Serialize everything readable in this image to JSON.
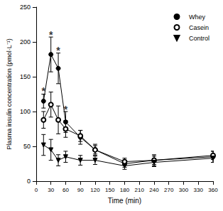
{
  "chart_data": {
    "type": "line",
    "x_label": "Time (min)",
    "y_label": "Plasma insulin concentration (pmol·L⁻¹)",
    "x": [
      15,
      30,
      45,
      60,
      90,
      120,
      180,
      240,
      360
    ],
    "series": [
      {
        "name": "Whey",
        "color": "#000000",
        "marker": "circle",
        "values": [
          115,
          182,
          162,
          85,
          63,
          45,
          25,
          30,
          35
        ],
        "errors": [
          10,
          25,
          22,
          15,
          10,
          8,
          5,
          8,
          8
        ]
      },
      {
        "name": "Casein",
        "color": "#000000",
        "marker": "open_circle",
        "values": [
          88,
          110,
          88,
          75,
          65,
          45,
          28,
          30,
          37
        ],
        "errors": [
          12,
          18,
          20,
          12,
          8,
          6,
          5,
          6,
          6
        ]
      },
      {
        "name": "Control",
        "color": "#000000",
        "marker": "triangle_down",
        "values": [
          52,
          45,
          30,
          35,
          30,
          30,
          22,
          27,
          33
        ],
        "errors": [
          15,
          15,
          8,
          8,
          7,
          6,
          5,
          6,
          6
        ]
      }
    ],
    "annotations": [
      {
        "text": "*",
        "x": 15,
        "y": 130
      },
      {
        "text": "*",
        "x": 30,
        "y": 210
      },
      {
        "text": "*",
        "x": 45,
        "y": 188
      },
      {
        "text": "*",
        "x": 60,
        "y": 103
      }
    ],
    "xlim": [
      0,
      360
    ],
    "xticks": [
      0,
      30,
      60,
      90,
      120,
      150,
      180,
      210,
      240,
      270,
      300,
      330,
      360
    ],
    "ylim": [
      0,
      250
    ],
    "yticks": [
      0,
      50,
      100,
      150,
      200,
      250
    ],
    "grid": false,
    "legend": "upper right"
  }
}
